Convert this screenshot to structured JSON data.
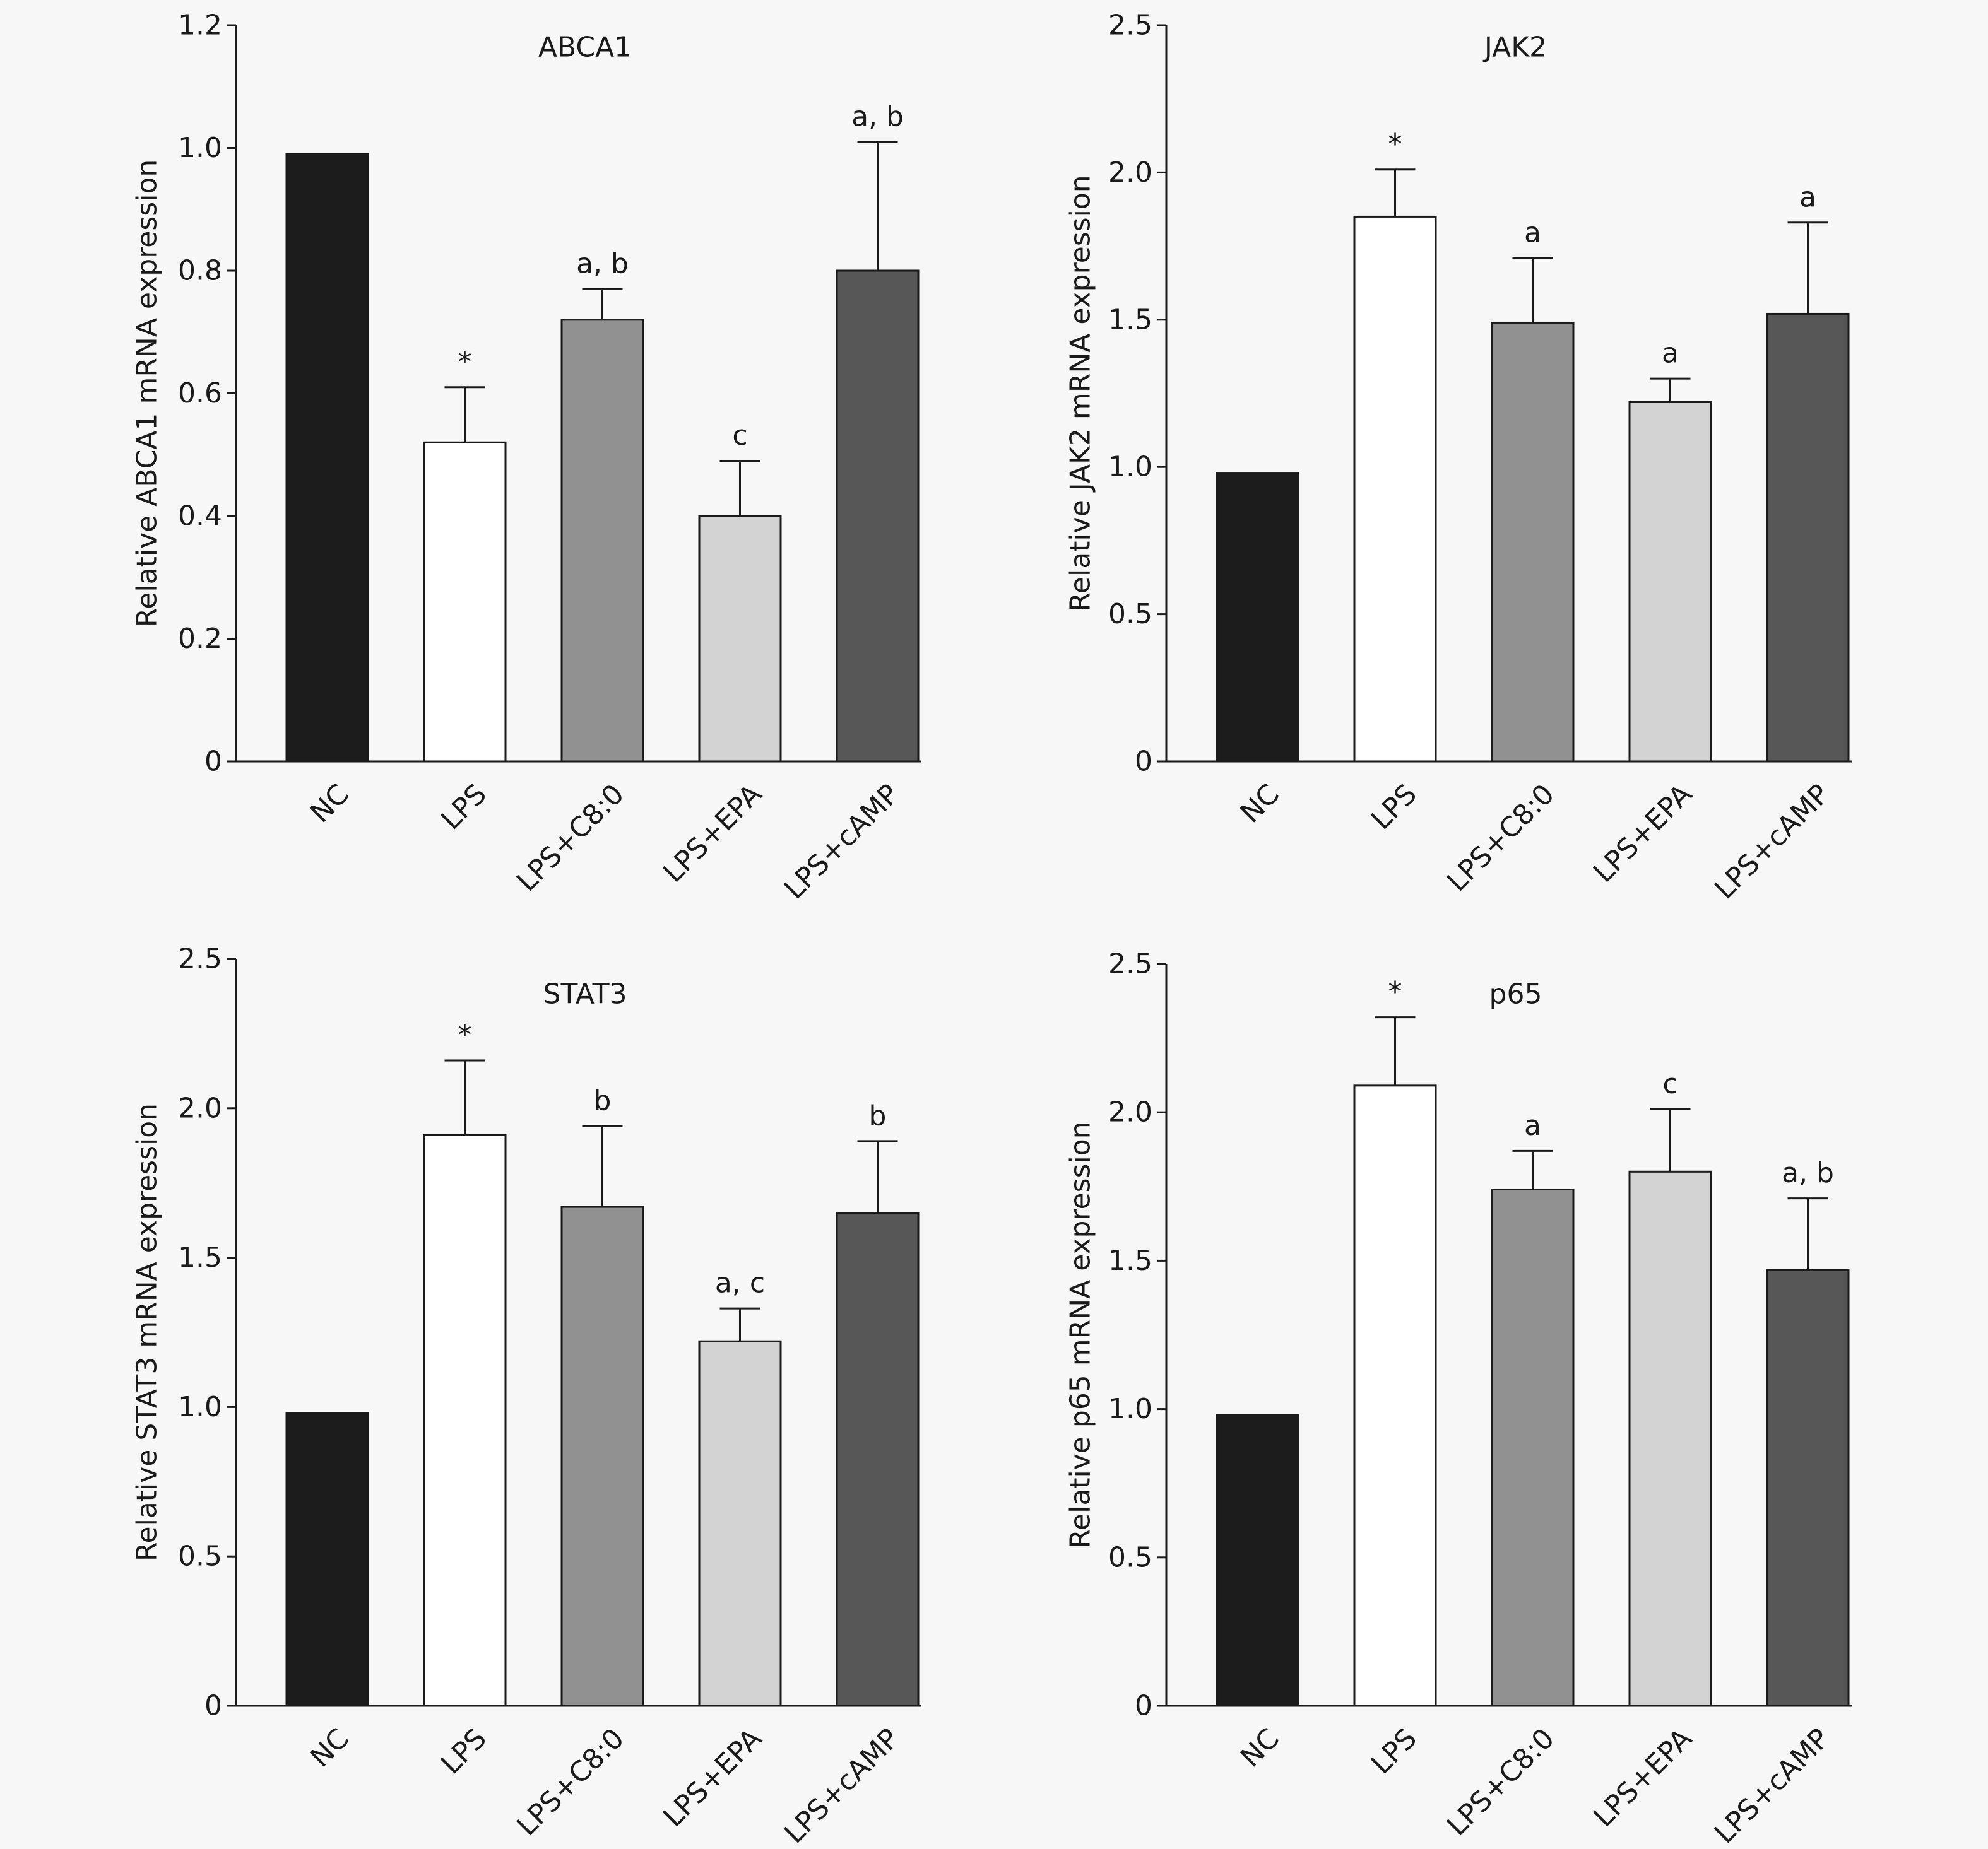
{
  "categories": [
    "NC",
    "LPS",
    "LPS+C8:0",
    "LPS+EPA",
    "LPS+cAMP"
  ],
  "bar_colors": [
    "#1c1c1c",
    "#ffffff",
    "#919191",
    "#d3d3d3",
    "#575757"
  ],
  "chart_data": [
    {
      "type": "bar",
      "title": "ABCA1",
      "ylabel": "Relative ABCA1 mRNA expression",
      "ylim": [
        0,
        1.2
      ],
      "yticks": [
        0,
        0.2,
        0.4,
        0.6,
        0.8,
        1.0,
        1.2
      ],
      "tick_labels": [
        "0",
        "0.2",
        "0.4",
        "0.6",
        "0.8",
        "1.0",
        "1.2"
      ],
      "categories": [
        "NC",
        "LPS",
        "LPS+C8:0",
        "LPS+EPA",
        "LPS+cAMP"
      ],
      "values": [
        0.99,
        0.52,
        0.72,
        0.4,
        0.8
      ],
      "error": [
        0,
        0.09,
        0.05,
        0.09,
        0.21
      ],
      "annotations": [
        "",
        "*",
        "a, b",
        "c",
        "a, b"
      ],
      "grid": false
    },
    {
      "type": "bar",
      "title": "JAK2",
      "ylabel": "Relative JAK2 mRNA expression",
      "ylim": [
        0,
        2.5
      ],
      "yticks": [
        0,
        0.5,
        1.0,
        1.5,
        2.0,
        2.5
      ],
      "tick_labels": [
        "0",
        "0.5",
        "1.0",
        "1.5",
        "2.0",
        "2.5"
      ],
      "categories": [
        "NC",
        "LPS",
        "LPS+C8:0",
        "LPS+EPA",
        "LPS+cAMP"
      ],
      "values": [
        0.98,
        1.85,
        1.49,
        1.22,
        1.52
      ],
      "error": [
        0,
        0.16,
        0.22,
        0.08,
        0.31
      ],
      "annotations": [
        "",
        "*",
        "a",
        "a",
        "a"
      ],
      "grid": false
    },
    {
      "type": "bar",
      "title": "STAT3",
      "ylabel": "Relative STAT3 mRNA expression",
      "ylim": [
        0,
        2.5
      ],
      "yticks": [
        0,
        0.5,
        1.0,
        1.5,
        2.0,
        2.5
      ],
      "tick_labels": [
        "0",
        "0.5",
        "1.0",
        "1.5",
        "2.0",
        "2.5"
      ],
      "categories": [
        "NC",
        "LPS",
        "LPS+C8:0",
        "LPS+EPA",
        "LPS+cAMP"
      ],
      "values": [
        0.98,
        1.91,
        1.67,
        1.22,
        1.65
      ],
      "error": [
        0,
        0.25,
        0.27,
        0.11,
        0.24
      ],
      "annotations": [
        "",
        "*",
        "b",
        "a, c",
        "b"
      ],
      "grid": false
    },
    {
      "type": "bar",
      "title": "p65",
      "ylabel": "Relative p65 mRNA expression",
      "ylim": [
        0,
        2.5
      ],
      "yticks": [
        0,
        0.5,
        1.0,
        1.5,
        2.0,
        2.5
      ],
      "tick_labels": [
        "0",
        "0.5",
        "1.0",
        "1.5",
        "2.0",
        "2.5"
      ],
      "categories": [
        "NC",
        "LPS",
        "LPS+C8:0",
        "LPS+EPA",
        "LPS+cAMP"
      ],
      "values": [
        0.98,
        2.09,
        1.74,
        1.8,
        1.47
      ],
      "error": [
        0,
        0.23,
        0.13,
        0.21,
        0.24
      ],
      "annotations": [
        "",
        "*",
        "a",
        "c",
        "a, b"
      ],
      "grid": false
    }
  ]
}
